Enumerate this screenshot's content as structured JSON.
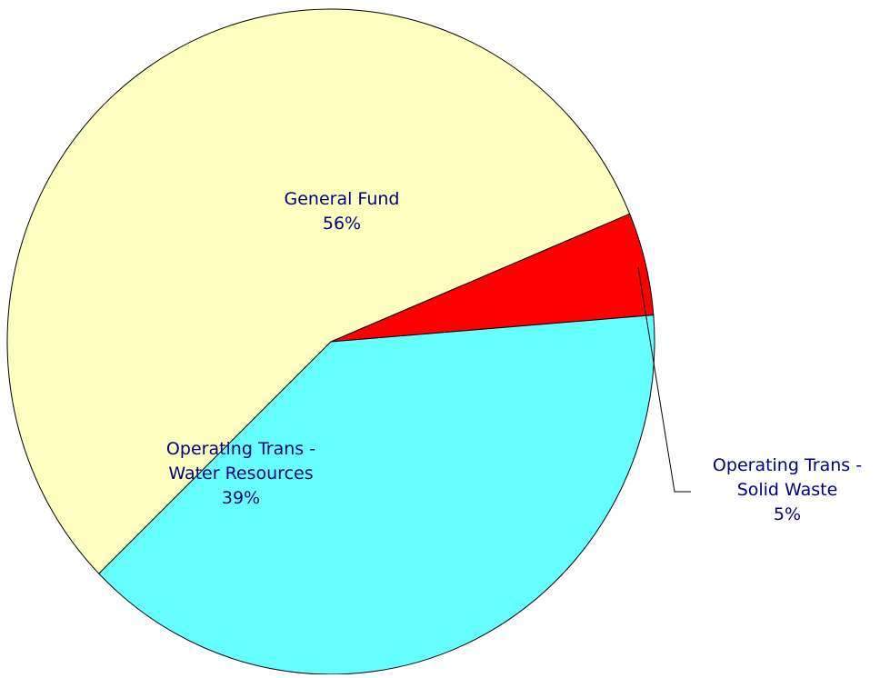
{
  "chart_data": {
    "type": "pie",
    "title": "",
    "legend": "none",
    "slices": [
      {
        "label_lines": [
          "General Fund"
        ],
        "value_label": "56%",
        "value": 56,
        "color": "#FFFFC0"
      },
      {
        "label_lines": [
          "Operating Trans -",
          "Solid Waste"
        ],
        "value_label": "5%",
        "value": 5,
        "color": "#FF0000"
      },
      {
        "label_lines": [
          "Operating Trans -",
          "Water Resources"
        ],
        "value_label": "39%",
        "value": 39,
        "color": "#66FFFF"
      }
    ]
  }
}
